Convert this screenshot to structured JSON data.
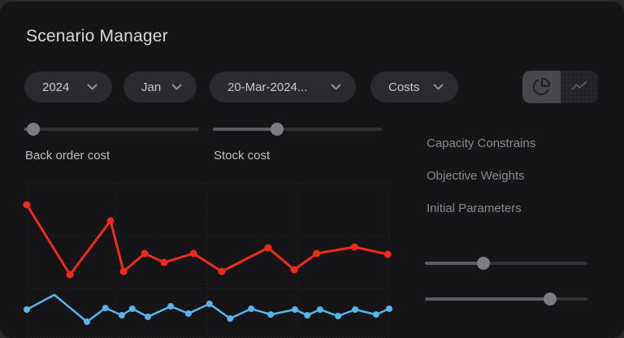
{
  "header": {
    "title": "Scenario Manager"
  },
  "filters": {
    "year": {
      "value": "2024"
    },
    "month": {
      "value": "Jan"
    },
    "date": {
      "value": "20-Mar-2024..."
    },
    "metric": {
      "value": "Costs"
    }
  },
  "view_toggle": {
    "options": [
      {
        "id": "pie-view",
        "icon": "pie-chart-icon",
        "active": true
      },
      {
        "id": "trend-view",
        "icon": "trend-line-icon",
        "active": false
      }
    ]
  },
  "param_sliders": [
    {
      "label": "Back order cost",
      "value_pct": 5
    },
    {
      "label": "Stock cost",
      "value_pct": 38
    }
  ],
  "settings_menu": {
    "items": [
      {
        "label": "Capacity Constrains"
      },
      {
        "label": "Objective Weights"
      },
      {
        "label": "Initial Parameters"
      }
    ]
  },
  "weight_sliders": [
    {
      "value_pct": 36
    },
    {
      "value_pct": 77
    }
  ],
  "colors": {
    "page_bg": "#2a2a2d",
    "card_bg": "#151518",
    "pill_bg": "#2b2b2f",
    "seg_active_bg": "#47474c",
    "seg_inactive_bg": "#232327",
    "grid": "#2d2d31",
    "series_red": "#f12a1c",
    "series_blue": "#58b5ea",
    "muted_text": "#8a8a90",
    "label_text": "#bfbfc4"
  },
  "chart_data": {
    "type": "line",
    "title": "",
    "xlabel": "",
    "ylabel": "",
    "legend": false,
    "axis_labels_visible": false,
    "grid_style": "dotted",
    "x_unit": "percent_of_plot_width",
    "y_unit": "percent_of_plot_height_from_bottom",
    "grid": {
      "v_pct": [
        0,
        24.7,
        49.8,
        74.9,
        100
      ],
      "h_pct": [
        0,
        31.6,
        65.8,
        100
      ]
    },
    "series": [
      {
        "name": "upper-series-red",
        "color": "#f12a1c",
        "line_width": 3,
        "marker_radius": 4.5,
        "no_marker_indices": [],
        "points": [
          [
            0,
            85.8
          ],
          [
            11.9,
            40.5
          ],
          [
            23.1,
            75.3
          ],
          [
            26.7,
            42.6
          ],
          [
            32.5,
            54.2
          ],
          [
            37.9,
            48.4
          ],
          [
            46.0,
            54.2
          ],
          [
            53.8,
            42.6
          ],
          [
            66.6,
            57.9
          ],
          [
            73.8,
            43.7
          ],
          [
            80.0,
            54.2
          ],
          [
            90.4,
            58.4
          ],
          [
            99.6,
            53.7
          ]
        ]
      },
      {
        "name": "lower-series-blue",
        "color": "#58b5ea",
        "line_width": 2.5,
        "marker_radius": 4,
        "no_marker_indices": [
          1
        ],
        "points": [
          [
            0,
            17.9
          ],
          [
            7.6,
            27.4
          ],
          [
            16.6,
            10.0
          ],
          [
            21.7,
            18.9
          ],
          [
            26.2,
            14.2
          ],
          [
            29.1,
            18.4
          ],
          [
            33.4,
            13.2
          ],
          [
            39.7,
            20.0
          ],
          [
            44.6,
            15.3
          ],
          [
            50.4,
            21.6
          ],
          [
            56.1,
            12.1
          ],
          [
            61.9,
            18.4
          ],
          [
            67.3,
            14.7
          ],
          [
            74.0,
            17.9
          ],
          [
            77.4,
            14.2
          ],
          [
            80.9,
            17.9
          ],
          [
            85.9,
            13.7
          ],
          [
            90.6,
            17.9
          ],
          [
            96.4,
            14.7
          ],
          [
            100,
            18.4
          ]
        ]
      }
    ]
  }
}
